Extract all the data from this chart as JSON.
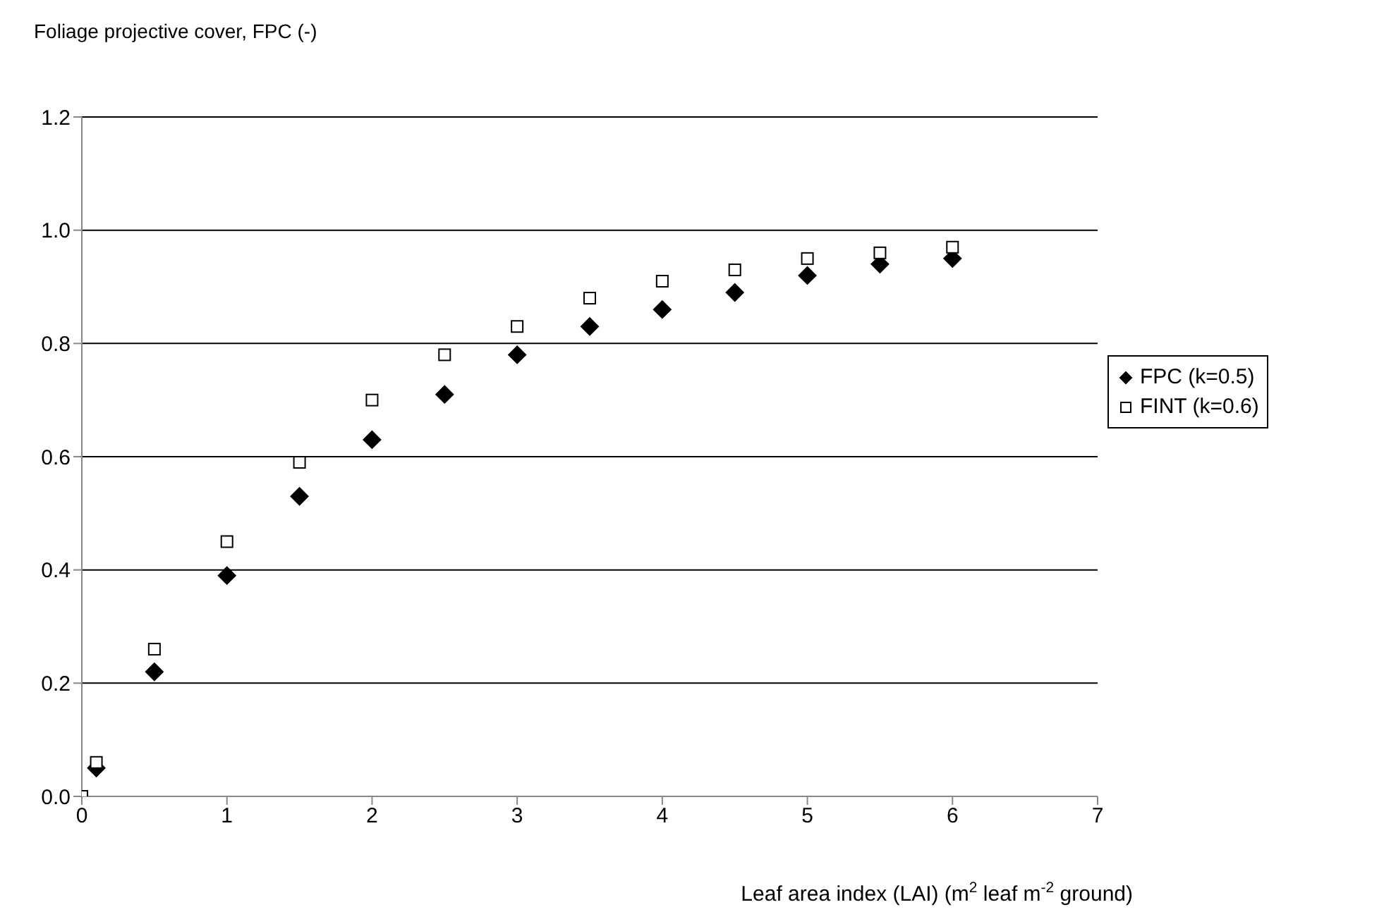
{
  "chart_data": {
    "type": "scatter",
    "title": "Foliage projective cover, FPC (-)",
    "xlabel": "Leaf area index (LAI) (m$^{2}$ leaf m$^{-2}$ ground)",
    "x": [
      0,
      0.1,
      0.5,
      1,
      1.5,
      2,
      2.5,
      3,
      3.5,
      4,
      4.5,
      5,
      5.5,
      6
    ],
    "series": [
      {
        "name": "FPC (k=0.5)",
        "color": "#000000",
        "marker": "diamond",
        "values": [
          null,
          0.05,
          0.22,
          0.39,
          0.53,
          0.63,
          0.71,
          0.78,
          0.83,
          0.86,
          0.89,
          0.92,
          0.94,
          0.95
        ]
      },
      {
        "name": "FINT (k=0.6)",
        "color": "#000000",
        "marker": "square",
        "values": [
          0,
          0.06,
          0.26,
          0.45,
          0.59,
          0.7,
          0.78,
          0.83,
          0.88,
          0.91,
          0.93,
          0.95,
          0.96,
          0.97
        ]
      }
    ],
    "xlim": [
      0,
      7
    ],
    "xticks": [
      0,
      1,
      2,
      3,
      4,
      5,
      6,
      7
    ],
    "ylim": [
      0,
      1.2
    ],
    "yticks": [
      {
        "value": 0,
        "label": "0.0"
      },
      {
        "value": 0.2,
        "label": "0.2"
      },
      {
        "value": 0.4,
        "label": "0.4"
      },
      {
        "value": 0.6,
        "label": "0.6"
      },
      {
        "value": 0.8,
        "label": "0.8"
      },
      {
        "value": 1,
        "label": "1.0"
      },
      {
        "value": 1.2,
        "label": "1.2"
      }
    ],
    "grid": "y",
    "legend": "right"
  }
}
